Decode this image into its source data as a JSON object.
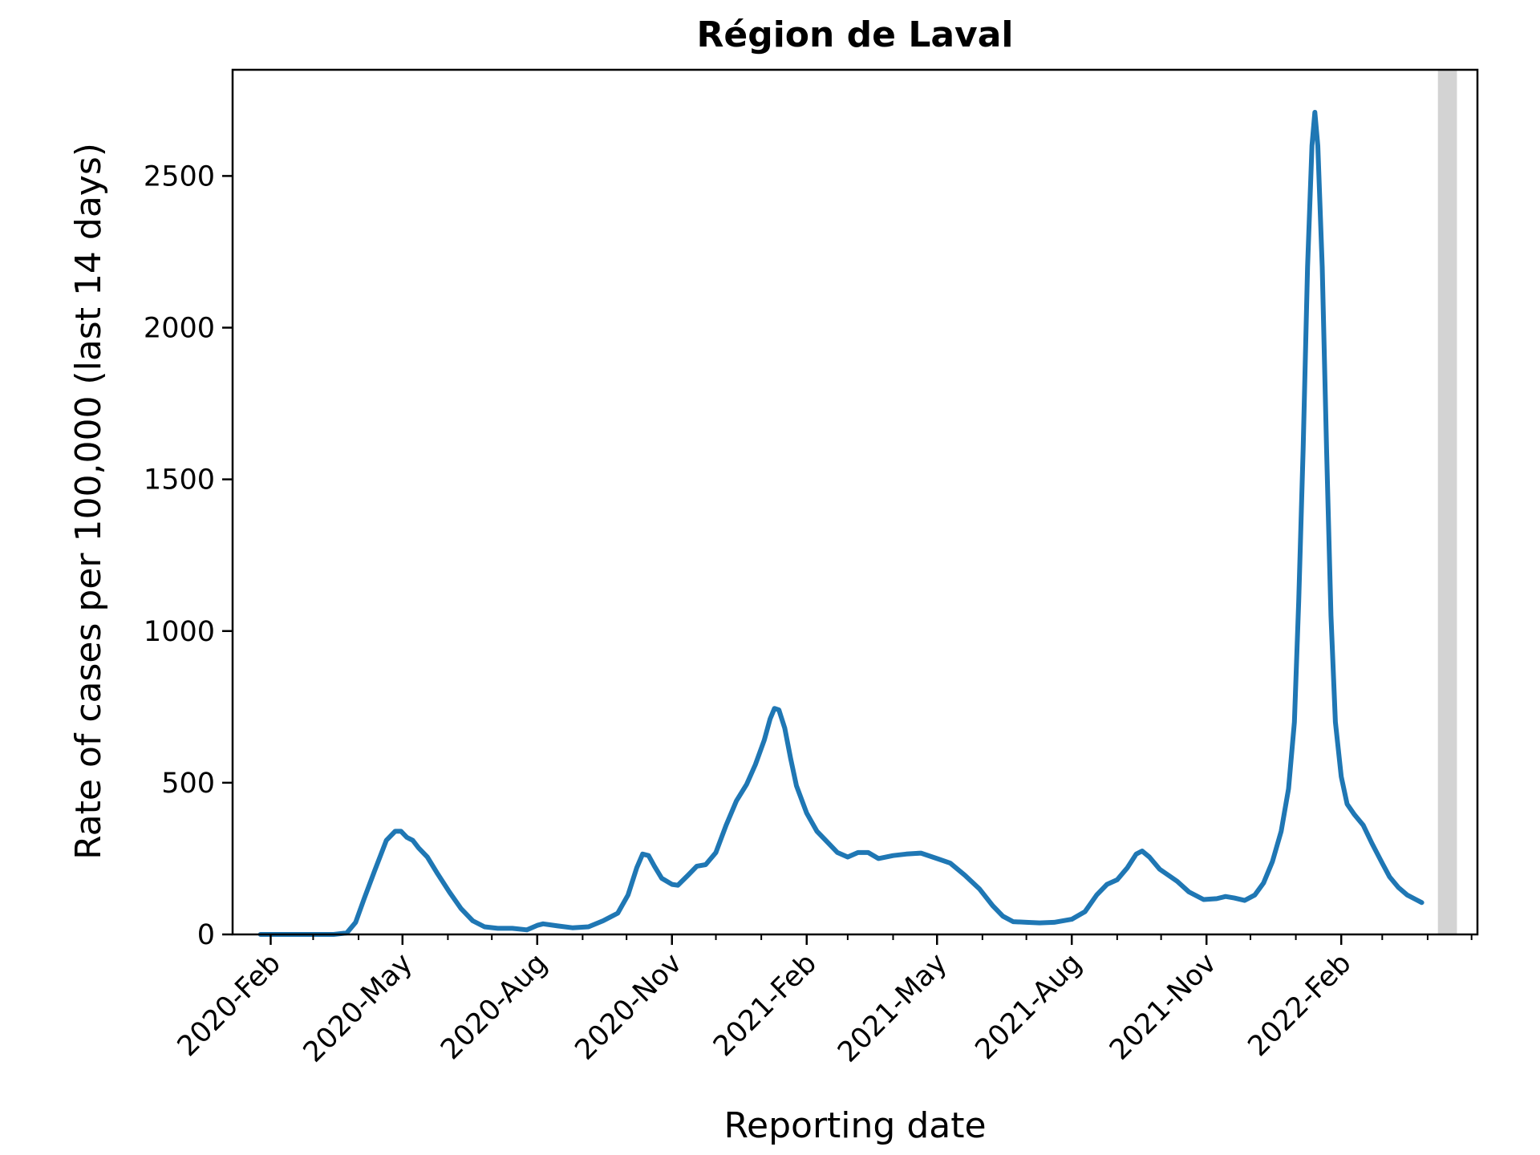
{
  "chart_data": {
    "type": "line",
    "title": "Région de Laval",
    "xlabel": "Reporting date",
    "ylabel": "Rate of cases per 100,000 (last 14 days)",
    "xlim": [
      "2020-01-06",
      "2022-05-05"
    ],
    "ylim": [
      0,
      2850
    ],
    "grid": false,
    "legend": "none",
    "line_color": "#1f77b4",
    "shade_color": "#d3d3d3",
    "shaded_range": [
      "2022-04-08",
      "2022-04-21"
    ],
    "x_ticks": [
      {
        "date": "2020-02-01",
        "label": "2020-Feb"
      },
      {
        "date": "2020-05-01",
        "label": "2020-May"
      },
      {
        "date": "2020-08-01",
        "label": "2020-Aug"
      },
      {
        "date": "2020-11-01",
        "label": "2020-Nov"
      },
      {
        "date": "2021-02-01",
        "label": "2021-Feb"
      },
      {
        "date": "2021-05-01",
        "label": "2021-May"
      },
      {
        "date": "2021-08-01",
        "label": "2021-Aug"
      },
      {
        "date": "2021-11-01",
        "label": "2021-Nov"
      },
      {
        "date": "2022-02-01",
        "label": "2022-Feb"
      }
    ],
    "x_minor_ticks": [
      "2020-03-01",
      "2020-04-01",
      "2020-06-01",
      "2020-07-01",
      "2020-09-01",
      "2020-10-01",
      "2020-12-01",
      "2021-01-01",
      "2021-03-01",
      "2021-04-01",
      "2021-06-01",
      "2021-07-01",
      "2021-09-01",
      "2021-10-01",
      "2021-12-01",
      "2022-01-01",
      "2022-03-01",
      "2022-04-01",
      "2022-05-01"
    ],
    "y_ticks": [
      0,
      500,
      1000,
      1500,
      2000,
      2500
    ],
    "series": [
      {
        "points": [
          [
            "2020-01-25",
            0
          ],
          [
            "2020-02-15",
            0
          ],
          [
            "2020-03-15",
            0
          ],
          [
            "2020-03-24",
            5
          ],
          [
            "2020-03-30",
            40
          ],
          [
            "2020-04-05",
            120
          ],
          [
            "2020-04-12",
            210
          ],
          [
            "2020-04-20",
            310
          ],
          [
            "2020-04-26",
            340
          ],
          [
            "2020-04-30",
            340
          ],
          [
            "2020-05-04",
            320
          ],
          [
            "2020-05-08",
            310
          ],
          [
            "2020-05-12",
            285
          ],
          [
            "2020-05-18",
            255
          ],
          [
            "2020-05-25",
            200
          ],
          [
            "2020-06-02",
            140
          ],
          [
            "2020-06-10",
            85
          ],
          [
            "2020-06-18",
            45
          ],
          [
            "2020-06-26",
            25
          ],
          [
            "2020-07-05",
            20
          ],
          [
            "2020-07-15",
            20
          ],
          [
            "2020-07-25",
            15
          ],
          [
            "2020-08-01",
            30
          ],
          [
            "2020-08-05",
            35
          ],
          [
            "2020-08-15",
            28
          ],
          [
            "2020-08-25",
            22
          ],
          [
            "2020-09-05",
            25
          ],
          [
            "2020-09-15",
            45
          ],
          [
            "2020-09-25",
            70
          ],
          [
            "2020-10-02",
            130
          ],
          [
            "2020-10-08",
            220
          ],
          [
            "2020-10-12",
            265
          ],
          [
            "2020-10-16",
            260
          ],
          [
            "2020-10-20",
            225
          ],
          [
            "2020-10-25",
            185
          ],
          [
            "2020-11-01",
            165
          ],
          [
            "2020-11-05",
            162
          ],
          [
            "2020-11-12",
            195
          ],
          [
            "2020-11-18",
            225
          ],
          [
            "2020-11-24",
            230
          ],
          [
            "2020-12-01",
            270
          ],
          [
            "2020-12-08",
            360
          ],
          [
            "2020-12-15",
            440
          ],
          [
            "2020-12-22",
            495
          ],
          [
            "2020-12-28",
            560
          ],
          [
            "2021-01-03",
            640
          ],
          [
            "2021-01-07",
            710
          ],
          [
            "2021-01-10",
            745
          ],
          [
            "2021-01-13",
            740
          ],
          [
            "2021-01-17",
            680
          ],
          [
            "2021-01-21",
            580
          ],
          [
            "2021-01-25",
            490
          ],
          [
            "2021-02-01",
            400
          ],
          [
            "2021-02-08",
            340
          ],
          [
            "2021-02-15",
            305
          ],
          [
            "2021-02-22",
            270
          ],
          [
            "2021-03-01",
            255
          ],
          [
            "2021-03-08",
            270
          ],
          [
            "2021-03-15",
            270
          ],
          [
            "2021-03-22",
            250
          ],
          [
            "2021-04-01",
            260
          ],
          [
            "2021-04-10",
            265
          ],
          [
            "2021-04-20",
            268
          ],
          [
            "2021-05-01",
            250
          ],
          [
            "2021-05-10",
            235
          ],
          [
            "2021-05-20",
            195
          ],
          [
            "2021-05-30",
            150
          ],
          [
            "2021-06-08",
            95
          ],
          [
            "2021-06-15",
            60
          ],
          [
            "2021-06-22",
            42
          ],
          [
            "2021-07-01",
            40
          ],
          [
            "2021-07-10",
            38
          ],
          [
            "2021-07-20",
            40
          ],
          [
            "2021-08-01",
            50
          ],
          [
            "2021-08-10",
            75
          ],
          [
            "2021-08-18",
            130
          ],
          [
            "2021-08-25",
            165
          ],
          [
            "2021-09-01",
            180
          ],
          [
            "2021-09-08",
            220
          ],
          [
            "2021-09-14",
            265
          ],
          [
            "2021-09-18",
            275
          ],
          [
            "2021-09-23",
            255
          ],
          [
            "2021-09-30",
            215
          ],
          [
            "2021-10-06",
            195
          ],
          [
            "2021-10-12",
            175
          ],
          [
            "2021-10-20",
            140
          ],
          [
            "2021-10-30",
            115
          ],
          [
            "2021-11-08",
            118
          ],
          [
            "2021-11-14",
            125
          ],
          [
            "2021-11-20",
            120
          ],
          [
            "2021-11-27",
            112
          ],
          [
            "2021-12-04",
            130
          ],
          [
            "2021-12-10",
            170
          ],
          [
            "2021-12-16",
            240
          ],
          [
            "2021-12-22",
            340
          ],
          [
            "2021-12-27",
            480
          ],
          [
            "2021-12-31",
            700
          ],
          [
            "2022-01-03",
            1100
          ],
          [
            "2022-01-06",
            1600
          ],
          [
            "2022-01-09",
            2200
          ],
          [
            "2022-01-12",
            2600
          ],
          [
            "2022-01-14",
            2710
          ],
          [
            "2022-01-16",
            2600
          ],
          [
            "2022-01-19",
            2200
          ],
          [
            "2022-01-22",
            1600
          ],
          [
            "2022-01-25",
            1050
          ],
          [
            "2022-01-28",
            700
          ],
          [
            "2022-02-01",
            520
          ],
          [
            "2022-02-05",
            430
          ],
          [
            "2022-02-10",
            395
          ],
          [
            "2022-02-16",
            360
          ],
          [
            "2022-02-22",
            300
          ],
          [
            "2022-03-01",
            235
          ],
          [
            "2022-03-06",
            190
          ],
          [
            "2022-03-12",
            155
          ],
          [
            "2022-03-18",
            130
          ],
          [
            "2022-03-24",
            115
          ],
          [
            "2022-03-28",
            105
          ]
        ]
      }
    ]
  }
}
